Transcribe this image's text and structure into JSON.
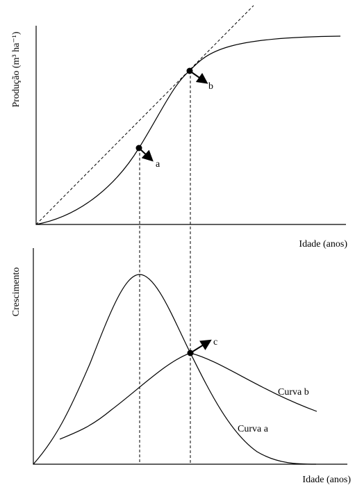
{
  "top_panel": {
    "y_label": "Produção (m³ ha⁻¹)",
    "x_label": "Idade (anos)",
    "point_a": "a",
    "point_b": "b"
  },
  "bottom_panel": {
    "y_label": "Crescimento",
    "x_label": "Idade (anos)",
    "point_c": "c",
    "curve_b": "Curva b",
    "curve_a": "Curva a"
  }
}
